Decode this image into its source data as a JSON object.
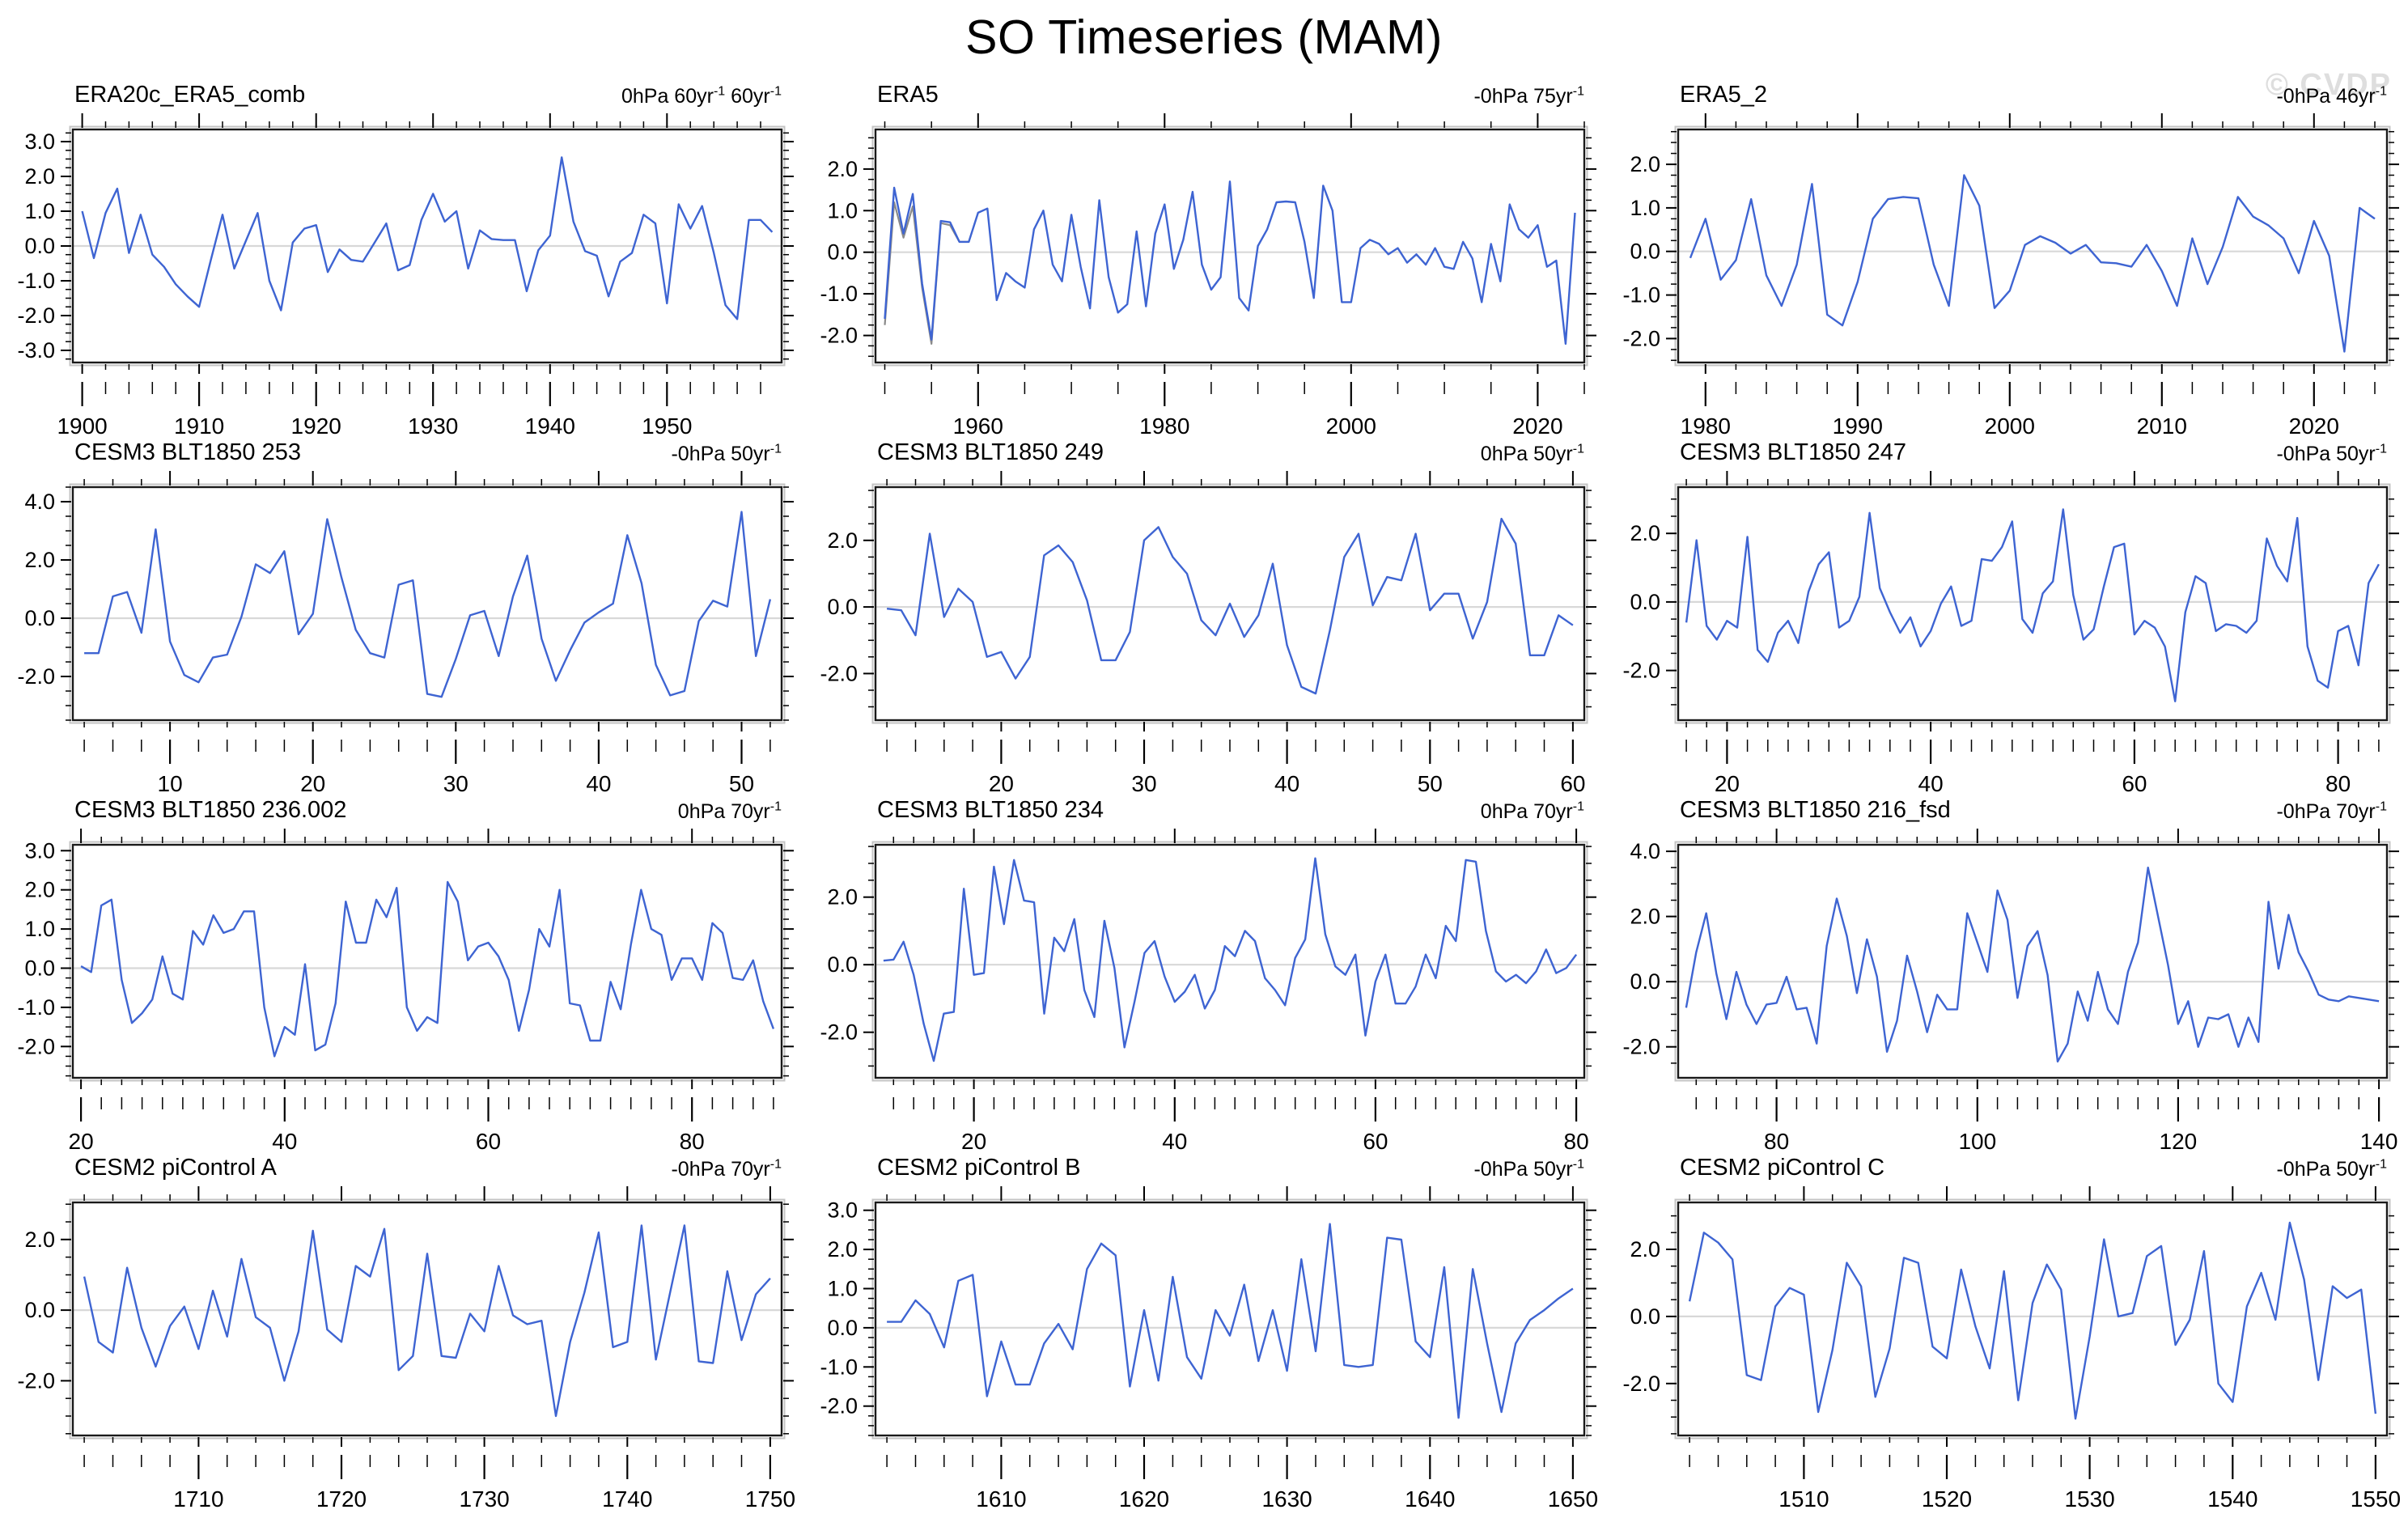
{
  "page": {
    "title": "SO Timeseries (MAM)",
    "watermark": "© CVDP"
  },
  "colors": {
    "line": "#3e64d2",
    "line_secondary": "#8a8a8a",
    "zero_line": "#d8d8d8",
    "frame": "#1a1a1a",
    "frame_shadow": "#c4c4c4",
    "watermark": "#dedede"
  },
  "chart_data": [
    {
      "type": "line",
      "title": "ERA20c_ERA5_comb",
      "units": "0hPa 60yr^-1 60yr^-1",
      "x0": 1900,
      "xlim": [
        1899.2,
        1959.8
      ],
      "xticks": [
        1900,
        1910,
        1920,
        1930,
        1940,
        1950
      ],
      "xminor": 2,
      "ylim": [
        -3.35,
        3.35
      ],
      "yticks": [
        3,
        2,
        1,
        0,
        -1,
        -2,
        -3
      ],
      "yminor": 0.25,
      "values": [
        1.0,
        -0.35,
        0.95,
        1.65,
        -0.2,
        0.9,
        -0.25,
        -0.6,
        -1.1,
        -1.45,
        -1.75,
        -0.4,
        0.9,
        -0.65,
        0.15,
        0.95,
        -1.0,
        -1.85,
        0.1,
        0.5,
        0.6,
        -0.75,
        -0.1,
        -0.4,
        -0.45,
        0.1,
        0.65,
        -0.7,
        -0.55,
        0.75,
        1.5,
        0.7,
        1.0,
        -0.65,
        0.45,
        0.2,
        0.17,
        0.17,
        -1.3,
        -0.12,
        0.3,
        2.55,
        0.7,
        -0.15,
        -0.28,
        -1.45,
        -0.45,
        -0.2,
        0.9,
        0.65,
        -1.65,
        1.2,
        0.5,
        1.15,
        -0.2,
        -1.7,
        -2.1,
        0.75,
        0.75,
        0.4
      ]
    },
    {
      "type": "line",
      "title": "ERA5",
      "units": "-0hPa 75yr^-1",
      "x0": 1950,
      "xlim": [
        1949,
        2025
      ],
      "xticks": [
        1960,
        1980,
        2000,
        2020
      ],
      "xminor": 5,
      "ylim": [
        -2.65,
        2.95
      ],
      "yticks": [
        2,
        1,
        0,
        -1,
        -2
      ],
      "yminor": 0.25,
      "values": [
        -1.6,
        1.55,
        0.45,
        1.4,
        -0.75,
        -2.1,
        0.75,
        0.72,
        0.25,
        0.25,
        0.95,
        1.05,
        -1.15,
        -0.5,
        -0.7,
        -0.85,
        0.55,
        1.0,
        -0.3,
        -0.7,
        0.9,
        -0.35,
        -1.35,
        1.25,
        -0.6,
        -1.45,
        -1.25,
        0.5,
        -1.3,
        0.45,
        1.15,
        -0.4,
        0.3,
        1.45,
        -0.3,
        -0.9,
        -0.6,
        1.7,
        -1.1,
        -1.4,
        0.15,
        0.55,
        1.2,
        1.22,
        1.2,
        0.25,
        -1.1,
        1.6,
        1.0,
        -1.2,
        -1.2,
        0.1,
        0.3,
        0.2,
        -0.05,
        0.1,
        -0.25,
        -0.05,
        -0.3,
        0.1,
        -0.35,
        -0.4,
        0.25,
        -0.15,
        -1.2,
        0.2,
        -0.7,
        1.15,
        0.55,
        0.35,
        0.65,
        -0.35,
        -0.2,
        -2.2,
        0.95
      ],
      "series2": {
        "x0": 1950,
        "values": [
          -1.75,
          1.2,
          0.35,
          1.1,
          -0.85,
          -2.2,
          0.7,
          0.65,
          0.25,
          0.25
        ]
      }
    },
    {
      "type": "line",
      "title": "ERA5_2",
      "units": "-0hPa 46yr^-1",
      "x0": 1979,
      "xlim": [
        1978.2,
        2024.8
      ],
      "xticks": [
        1980,
        1990,
        2000,
        2010,
        2020
      ],
      "xminor": 2,
      "ylim": [
        -2.55,
        2.8
      ],
      "yticks": [
        2,
        1,
        0,
        -1,
        -2
      ],
      "yminor": 0.25,
      "values": [
        -0.15,
        0.75,
        -0.65,
        -0.2,
        1.2,
        -0.55,
        -1.25,
        -0.3,
        1.55,
        -1.45,
        -1.7,
        -0.7,
        0.75,
        1.2,
        1.25,
        1.22,
        -0.3,
        -1.25,
        1.75,
        1.05,
        -1.3,
        -0.9,
        0.15,
        0.35,
        0.2,
        -0.05,
        0.15,
        -0.25,
        -0.27,
        -0.35,
        0.15,
        -0.45,
        -1.25,
        0.3,
        -0.75,
        0.1,
        1.25,
        0.8,
        0.6,
        0.3,
        -0.5,
        0.7,
        -0.1,
        -2.3,
        1.0,
        0.75
      ]
    },
    {
      "type": "line",
      "title": "CESM3 BLT1850 253",
      "units": "-0hPa 50yr^-1",
      "x0": 4,
      "xlim": [
        3.2,
        52.8
      ],
      "xticks": [
        10,
        20,
        30,
        40,
        50
      ],
      "xminor": 2,
      "ylim": [
        -3.5,
        4.5
      ],
      "yticks": [
        4,
        2,
        0,
        -2
      ],
      "yminor": 0.5,
      "values": [
        -1.2,
        -1.2,
        0.75,
        0.9,
        -0.5,
        3.05,
        -0.8,
        -1.95,
        -2.2,
        -1.35,
        -1.25,
        0.05,
        1.85,
        1.55,
        2.3,
        -0.55,
        0.15,
        3.4,
        1.4,
        -0.4,
        -1.2,
        -1.35,
        1.15,
        1.3,
        -2.6,
        -2.7,
        -1.4,
        0.1,
        0.25,
        -1.3,
        0.75,
        2.15,
        -0.7,
        -2.15,
        -1.1,
        -0.15,
        0.2,
        0.5,
        2.85,
        1.2,
        -1.6,
        -2.65,
        -2.5,
        -0.1,
        0.6,
        0.4,
        3.65,
        -1.3,
        0.65
      ]
    },
    {
      "type": "line",
      "title": "CESM3 BLT1850 249",
      "units": "0hPa 50yr^-1",
      "x0": 12,
      "xlim": [
        11.2,
        60.8
      ],
      "xticks": [
        20,
        30,
        40,
        50,
        60
      ],
      "xminor": 2,
      "ylim": [
        -3.4,
        3.6
      ],
      "yticks": [
        2,
        0,
        -2
      ],
      "yminor": 0.5,
      "values": [
        -0.05,
        -0.1,
        -0.85,
        2.2,
        -0.3,
        0.55,
        0.15,
        -1.5,
        -1.35,
        -2.15,
        -1.5,
        1.55,
        1.85,
        1.35,
        0.2,
        -1.6,
        -1.6,
        -0.75,
        2.0,
        2.4,
        1.5,
        1.0,
        -0.4,
        -0.85,
        0.1,
        -0.9,
        -0.25,
        1.3,
        -1.15,
        -2.4,
        -2.6,
        -0.7,
        1.5,
        2.2,
        0.05,
        0.9,
        0.8,
        2.2,
        -0.1,
        0.4,
        0.4,
        -0.95,
        0.15,
        2.65,
        1.9,
        -1.45,
        -1.45,
        -0.25,
        -0.55
      ]
    },
    {
      "type": "line",
      "title": "CESM3 BLT1850 247",
      "units": "-0hPa 50yr^-1",
      "x0": 16,
      "xlim": [
        15.2,
        84.8
      ],
      "xticks": [
        20,
        40,
        60,
        80
      ],
      "xminor": 2,
      "ylim": [
        -3.45,
        3.35
      ],
      "yticks": [
        2,
        0,
        -2
      ],
      "yminor": 0.5,
      "values": [
        -0.6,
        1.8,
        -0.7,
        -1.1,
        -0.55,
        -0.75,
        1.9,
        -1.4,
        -1.75,
        -0.9,
        -0.55,
        -1.2,
        0.3,
        1.1,
        1.45,
        -0.75,
        -0.55,
        0.15,
        2.6,
        0.4,
        -0.3,
        -0.9,
        -0.45,
        -1.3,
        -0.85,
        -0.05,
        0.45,
        -0.7,
        -0.55,
        1.25,
        1.2,
        1.6,
        2.35,
        -0.5,
        -0.9,
        0.25,
        0.6,
        2.7,
        0.2,
        -1.1,
        -0.8,
        0.45,
        1.6,
        1.7,
        -0.95,
        -0.55,
        -0.75,
        -1.3,
        -2.9,
        -0.3,
        0.75,
        0.55,
        -0.85,
        -0.65,
        -0.7,
        -0.9,
        -0.55,
        1.85,
        1.05,
        0.6,
        2.45,
        -1.3,
        -2.3,
        -2.5,
        -0.85,
        -0.7,
        -1.85,
        0.55,
        1.1
      ]
    },
    {
      "type": "line",
      "title": "CESM3 BLT1850 236.002",
      "units": "0hPa 70yr^-1",
      "x0": 20,
      "xlim": [
        19.2,
        88.8
      ],
      "xticks": [
        20,
        40,
        60,
        80
      ],
      "xminor": 2,
      "ylim": [
        -2.8,
        3.15
      ],
      "yticks": [
        3,
        2,
        1,
        0,
        -1,
        -2
      ],
      "yminor": 0.25,
      "values": [
        0.05,
        -0.1,
        1.6,
        1.75,
        -0.3,
        -1.4,
        -1.15,
        -0.8,
        0.3,
        -0.65,
        -0.8,
        0.95,
        0.6,
        1.35,
        0.9,
        1.0,
        1.45,
        1.45,
        -1.0,
        -2.25,
        -1.5,
        -1.7,
        0.1,
        -2.1,
        -1.95,
        -0.9,
        1.7,
        0.65,
        0.65,
        1.75,
        1.3,
        2.05,
        -1.0,
        -1.6,
        -1.25,
        -1.4,
        2.2,
        1.7,
        0.2,
        0.55,
        0.65,
        0.3,
        -0.3,
        -1.6,
        -0.55,
        1.0,
        0.55,
        2.0,
        -0.9,
        -0.95,
        -1.85,
        -1.85,
        -0.35,
        -1.05,
        0.6,
        2.0,
        1.0,
        0.85,
        -0.3,
        0.25,
        0.25,
        -0.3,
        1.15,
        0.9,
        -0.25,
        -0.3,
        0.2,
        -0.85,
        -1.55
      ]
    },
    {
      "type": "line",
      "title": "CESM3 BLT1850 234",
      "units": "0hPa 70yr^-1",
      "x0": 11,
      "xlim": [
        10.2,
        80.8
      ],
      "xticks": [
        20,
        40,
        60,
        80
      ],
      "xminor": 2,
      "ylim": [
        -3.35,
        3.55
      ],
      "yticks": [
        2,
        0,
        -2
      ],
      "yminor": 0.5,
      "values": [
        0.12,
        0.15,
        0.68,
        -0.3,
        -1.75,
        -2.85,
        -1.45,
        -1.4,
        2.25,
        -0.3,
        -0.25,
        2.9,
        1.2,
        3.1,
        1.9,
        1.85,
        -1.45,
        0.8,
        0.4,
        1.35,
        -0.75,
        -1.55,
        1.3,
        -0.1,
        -2.45,
        -1.1,
        0.35,
        0.7,
        -0.35,
        -1.1,
        -0.8,
        -0.3,
        -1.3,
        -0.75,
        0.55,
        0.25,
        1.0,
        0.7,
        -0.4,
        -0.75,
        -1.2,
        0.2,
        0.75,
        3.15,
        0.9,
        -0.05,
        -0.3,
        0.3,
        -2.1,
        -0.5,
        0.3,
        -1.15,
        -1.15,
        -0.65,
        0.3,
        -0.4,
        1.15,
        0.7,
        3.1,
        3.05,
        1.0,
        -0.2,
        -0.5,
        -0.3,
        -0.55,
        -0.2,
        0.45,
        -0.25,
        -0.1,
        0.3
      ]
    },
    {
      "type": "line",
      "title": "CESM3 BLT1850 216_fsd",
      "units": "-0hPa 70yr^-1",
      "x0": 71,
      "xlim": [
        70.2,
        140.8
      ],
      "xticks": [
        80,
        100,
        120,
        140
      ],
      "xminor": 2,
      "ylim": [
        -2.95,
        4.2
      ],
      "yticks": [
        4,
        2,
        0,
        -2
      ],
      "yminor": 0.5,
      "values": [
        -0.8,
        0.9,
        2.1,
        0.25,
        -1.15,
        0.3,
        -0.7,
        -1.3,
        -0.7,
        -0.65,
        0.15,
        -0.85,
        -0.8,
        -1.9,
        1.1,
        2.55,
        1.4,
        -0.35,
        1.3,
        0.15,
        -2.15,
        -1.2,
        0.8,
        -0.3,
        -1.55,
        -0.4,
        -0.85,
        -0.85,
        2.1,
        1.2,
        0.3,
        2.8,
        1.9,
        -0.5,
        1.1,
        1.55,
        0.2,
        -2.45,
        -1.9,
        -0.3,
        -1.2,
        0.3,
        -0.85,
        -1.3,
        0.3,
        1.2,
        3.5,
        2.0,
        0.5,
        -1.3,
        -0.6,
        -2.0,
        -1.1,
        -1.15,
        -1.0,
        -2.0,
        -1.1,
        -1.85,
        2.45,
        0.4,
        2.05,
        0.9,
        0.3,
        -0.4,
        -0.55,
        -0.6,
        -0.45,
        -0.5,
        -0.55,
        -0.6
      ]
    },
    {
      "type": "line",
      "title": "CESM2 piControl A",
      "units": "-0hPa 70yr^-1",
      "x0": 1702,
      "xlim": [
        1701.2,
        1750.8
      ],
      "xticks": [
        1710,
        1720,
        1730,
        1740,
        1750
      ],
      "xminor": 2,
      "ylim": [
        -3.55,
        3.05
      ],
      "yticks": [
        2,
        0,
        -2
      ],
      "yminor": 0.5,
      "values": [
        0.95,
        -0.9,
        -1.2,
        1.2,
        -0.5,
        -1.6,
        -0.45,
        0.1,
        -1.1,
        0.55,
        -0.75,
        1.45,
        -0.2,
        -0.5,
        -2.0,
        -0.6,
        2.25,
        -0.55,
        -0.9,
        1.25,
        0.95,
        2.3,
        -1.7,
        -1.3,
        1.6,
        -1.3,
        -1.35,
        -0.1,
        -0.6,
        1.25,
        -0.15,
        -0.4,
        -0.3,
        -3.0,
        -0.9,
        0.5,
        2.2,
        -1.05,
        -0.9,
        2.4,
        -1.4,
        0.5,
        2.4,
        -1.45,
        -1.5,
        1.1,
        -0.85,
        0.45,
        0.9
      ]
    },
    {
      "type": "line",
      "title": "CESM2 piControl B",
      "units": "-0hPa 50yr^-1",
      "x0": 1602,
      "xlim": [
        1601.2,
        1650.8
      ],
      "xticks": [
        1610,
        1620,
        1630,
        1640,
        1650
      ],
      "xminor": 2,
      "ylim": [
        -2.75,
        3.2
      ],
      "yticks": [
        3,
        2,
        1,
        0,
        -1,
        -2
      ],
      "yminor": 0.25,
      "values": [
        0.15,
        0.15,
        0.7,
        0.35,
        -0.5,
        1.2,
        1.35,
        -1.75,
        -0.35,
        -1.45,
        -1.45,
        -0.4,
        0.1,
        -0.55,
        1.5,
        2.15,
        1.85,
        -1.5,
        0.45,
        -1.35,
        1.3,
        -0.75,
        -1.3,
        0.45,
        -0.2,
        1.1,
        -0.85,
        0.45,
        -1.1,
        1.75,
        -0.6,
        2.65,
        -0.95,
        -1.0,
        -0.95,
        2.3,
        2.25,
        -0.35,
        -0.75,
        1.55,
        -2.3,
        1.5,
        -0.4,
        -2.15,
        -0.4,
        0.2,
        0.45,
        0.75,
        1.0
      ]
    },
    {
      "type": "line",
      "title": "CESM2 piControl C",
      "units": "-0hPa 50yr^-1",
      "x0": 1502,
      "xlim": [
        1501.2,
        1550.8
      ],
      "xticks": [
        1510,
        1520,
        1530,
        1540,
        1550
      ],
      "xminor": 2,
      "ylim": [
        -3.55,
        3.4
      ],
      "yticks": [
        2,
        0,
        -2
      ],
      "yminor": 0.5,
      "values": [
        0.45,
        2.5,
        2.2,
        1.7,
        -1.75,
        -1.9,
        0.3,
        0.85,
        0.65,
        -2.85,
        -1.0,
        1.6,
        0.9,
        -2.4,
        -0.95,
        1.75,
        1.6,
        -0.9,
        -1.25,
        1.4,
        -0.3,
        -1.55,
        1.35,
        -2.5,
        0.4,
        1.55,
        0.8,
        -3.05,
        -0.6,
        2.3,
        0.0,
        0.1,
        1.8,
        2.1,
        -0.85,
        -0.1,
        1.95,
        -2.0,
        -2.55,
        0.3,
        1.3,
        -0.1,
        2.8,
        1.1,
        -1.9,
        0.9,
        0.55,
        0.8,
        -2.9
      ]
    }
  ]
}
